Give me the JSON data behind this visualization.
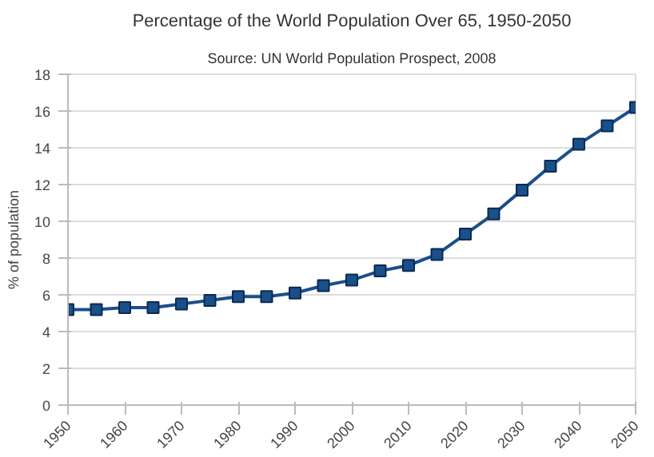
{
  "chart_data": {
    "type": "line",
    "title": "Percentage of the World Population Over 65, 1950-2050",
    "subtitle": "Source: UN World Population Prospect, 2008",
    "ylabel": "% of population",
    "x": [
      1950,
      1955,
      1960,
      1965,
      1970,
      1975,
      1980,
      1985,
      1990,
      1995,
      2000,
      2005,
      2010,
      2015,
      2020,
      2025,
      2030,
      2035,
      2040,
      2045,
      2050
    ],
    "series": [
      {
        "color": "#1a4f8a",
        "values": [
          5.2,
          5.2,
          5.3,
          5.3,
          5.5,
          5.7,
          5.9,
          5.9,
          6.1,
          6.5,
          6.8,
          7.3,
          7.6,
          8.2,
          9.3,
          10.4,
          11.7,
          13.0,
          14.2,
          15.2,
          16.2
        ]
      }
    ],
    "xlim": [
      1950,
      2050
    ],
    "xticks": [
      1950,
      1960,
      1970,
      1980,
      1990,
      2000,
      2010,
      2020,
      2030,
      2040,
      2050
    ],
    "ylim": [
      0,
      18
    ],
    "yticks": [
      0,
      2,
      4,
      6,
      8,
      10,
      12,
      14,
      16,
      18
    ],
    "grid": "y",
    "marker": "square",
    "line_style": "solid"
  }
}
